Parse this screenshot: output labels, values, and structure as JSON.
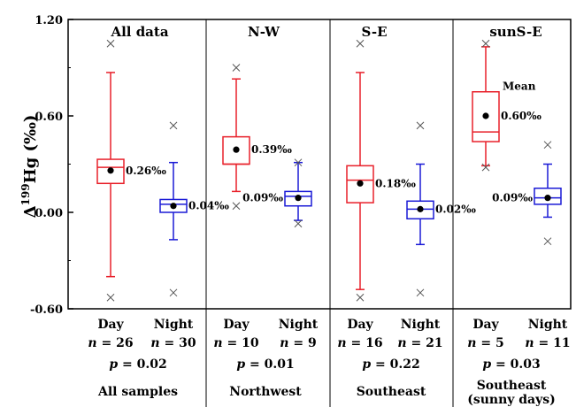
{
  "chart_data": {
    "type": "box",
    "ylabel_prefix": "Δ",
    "ylabel_sup": "199",
    "ylabel_main": "Hg (‰)",
    "ylim": [
      -0.6,
      1.2
    ],
    "yticks": [
      "-0.60",
      "0.00",
      "0.60",
      "1.20"
    ],
    "ytick_values": [
      -0.6,
      0.0,
      0.6,
      1.2
    ],
    "colors": {
      "day": "#e8202a",
      "night": "#1a1ad6",
      "mean": "#000000",
      "outlier": "#555555"
    },
    "panels": [
      {
        "title": "All data",
        "group_label": "All samples",
        "group_label_2": "",
        "p_value": "p = 0.02",
        "boxes": [
          {
            "series": "day",
            "condition": "Day",
            "n": "n = 26",
            "whisker_low": -0.4,
            "q1": 0.18,
            "median": 0.28,
            "q3": 0.33,
            "whisker_high": 0.87,
            "mean": 0.26,
            "mean_label": "0.26‰",
            "outliers": [
              1.05,
              -0.53
            ]
          },
          {
            "series": "night",
            "condition": "Night",
            "n": "n = 30",
            "whisker_low": -0.17,
            "q1": 0.0,
            "median": 0.05,
            "q3": 0.08,
            "whisker_high": 0.31,
            "mean": 0.04,
            "mean_label": "0.04‰",
            "outliers": [
              0.54,
              -0.5
            ]
          }
        ]
      },
      {
        "title": "N-W",
        "group_label": "Northwest",
        "group_label_2": "",
        "p_value": "p = 0.01",
        "boxes": [
          {
            "series": "day",
            "condition": "Day",
            "n": "n = 10",
            "whisker_low": 0.13,
            "q1": 0.3,
            "median": 0.3,
            "q3": 0.47,
            "whisker_high": 0.83,
            "mean": 0.39,
            "mean_label": "0.39‰",
            "outliers": [
              0.9,
              0.04
            ]
          },
          {
            "series": "night",
            "condition": "Night",
            "n": "n = 9",
            "whisker_low": -0.05,
            "q1": 0.04,
            "median": 0.1,
            "q3": 0.13,
            "whisker_high": 0.31,
            "mean": 0.09,
            "mean_label": "0.09‰",
            "outliers": [
              0.31,
              -0.07
            ]
          }
        ]
      },
      {
        "title": "S-E",
        "group_label": "Southeast",
        "group_label_2": "",
        "p_value": "p = 0.22",
        "boxes": [
          {
            "series": "day",
            "condition": "Day",
            "n": "n = 16",
            "whisker_low": -0.48,
            "q1": 0.06,
            "median": 0.2,
            "q3": 0.29,
            "whisker_high": 0.87,
            "mean": 0.18,
            "mean_label": "0.18‰",
            "outliers": [
              1.05,
              -0.53
            ]
          },
          {
            "series": "night",
            "condition": "Night",
            "n": "n = 21",
            "whisker_low": -0.2,
            "q1": -0.04,
            "median": 0.02,
            "q3": 0.07,
            "whisker_high": 0.3,
            "mean": 0.02,
            "mean_label": "0.02‰",
            "outliers": [
              0.54,
              -0.5
            ]
          }
        ]
      },
      {
        "title": "sunS-E",
        "group_label": "Southeast",
        "group_label_2": "(sunny days)",
        "p_value": "p = 0.03",
        "annotation": "Mean",
        "boxes": [
          {
            "series": "day",
            "condition": "Day",
            "n": "n = 5",
            "whisker_low": 0.29,
            "q1": 0.44,
            "median": 0.5,
            "q3": 0.75,
            "whisker_high": 1.03,
            "mean": 0.6,
            "mean_label": "0.60‰",
            "outliers": [
              1.05,
              0.28
            ]
          },
          {
            "series": "night",
            "condition": "Night",
            "n": "n = 11",
            "whisker_low": -0.03,
            "q1": 0.05,
            "median": 0.09,
            "q3": 0.15,
            "whisker_high": 0.3,
            "mean": 0.09,
            "mean_label": "0.09‰",
            "outliers": [
              0.42,
              -0.18
            ]
          }
        ]
      }
    ]
  }
}
